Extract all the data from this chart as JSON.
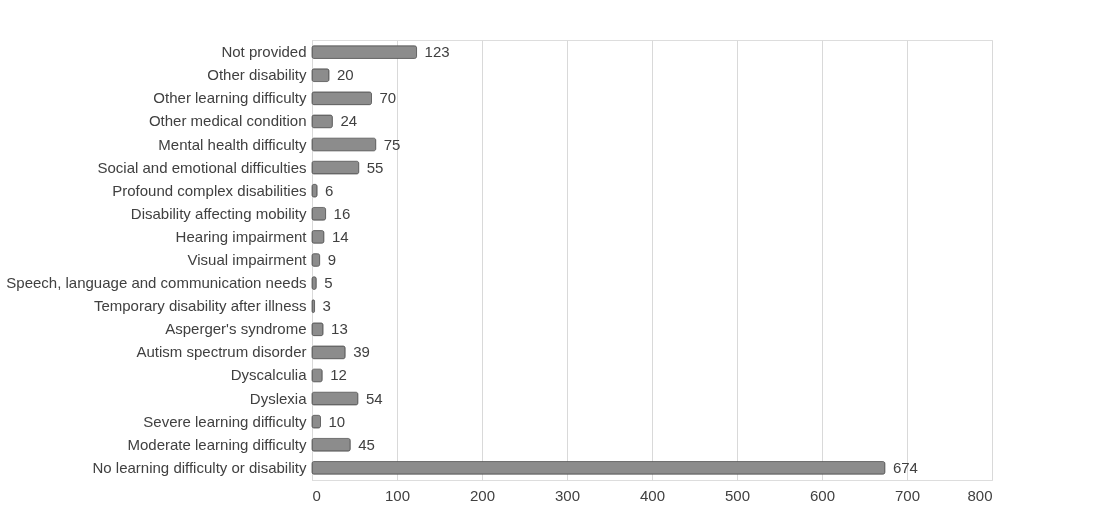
{
  "chart_data": {
    "type": "bar",
    "orientation": "horizontal",
    "categories": [
      "Not provided",
      "Other disability",
      "Other learning difficulty",
      "Other medical condition",
      "Mental health difficulty",
      "Social and emotional difficulties",
      "Profound complex disabilities",
      "Disability affecting mobility",
      "Hearing impairment",
      "Visual impairment",
      "Speech, language and communication needs",
      "Temporary disability after illness",
      "Asperger's syndrome",
      "Autism spectrum disorder",
      "Dyscalculia",
      "Dyslexia",
      "Severe learning difficulty",
      "Moderate learning difficulty",
      "No learning difficulty or disability"
    ],
    "values": [
      123,
      20,
      70,
      24,
      75,
      55,
      6,
      16,
      14,
      9,
      5,
      3,
      13,
      39,
      12,
      54,
      10,
      45,
      674
    ],
    "color": "#8c8c8c",
    "xlim": [
      0,
      800
    ],
    "xticks": [
      0,
      100,
      200,
      300,
      400,
      500,
      600,
      700,
      800
    ],
    "grid": "x",
    "data_labels": true
  }
}
